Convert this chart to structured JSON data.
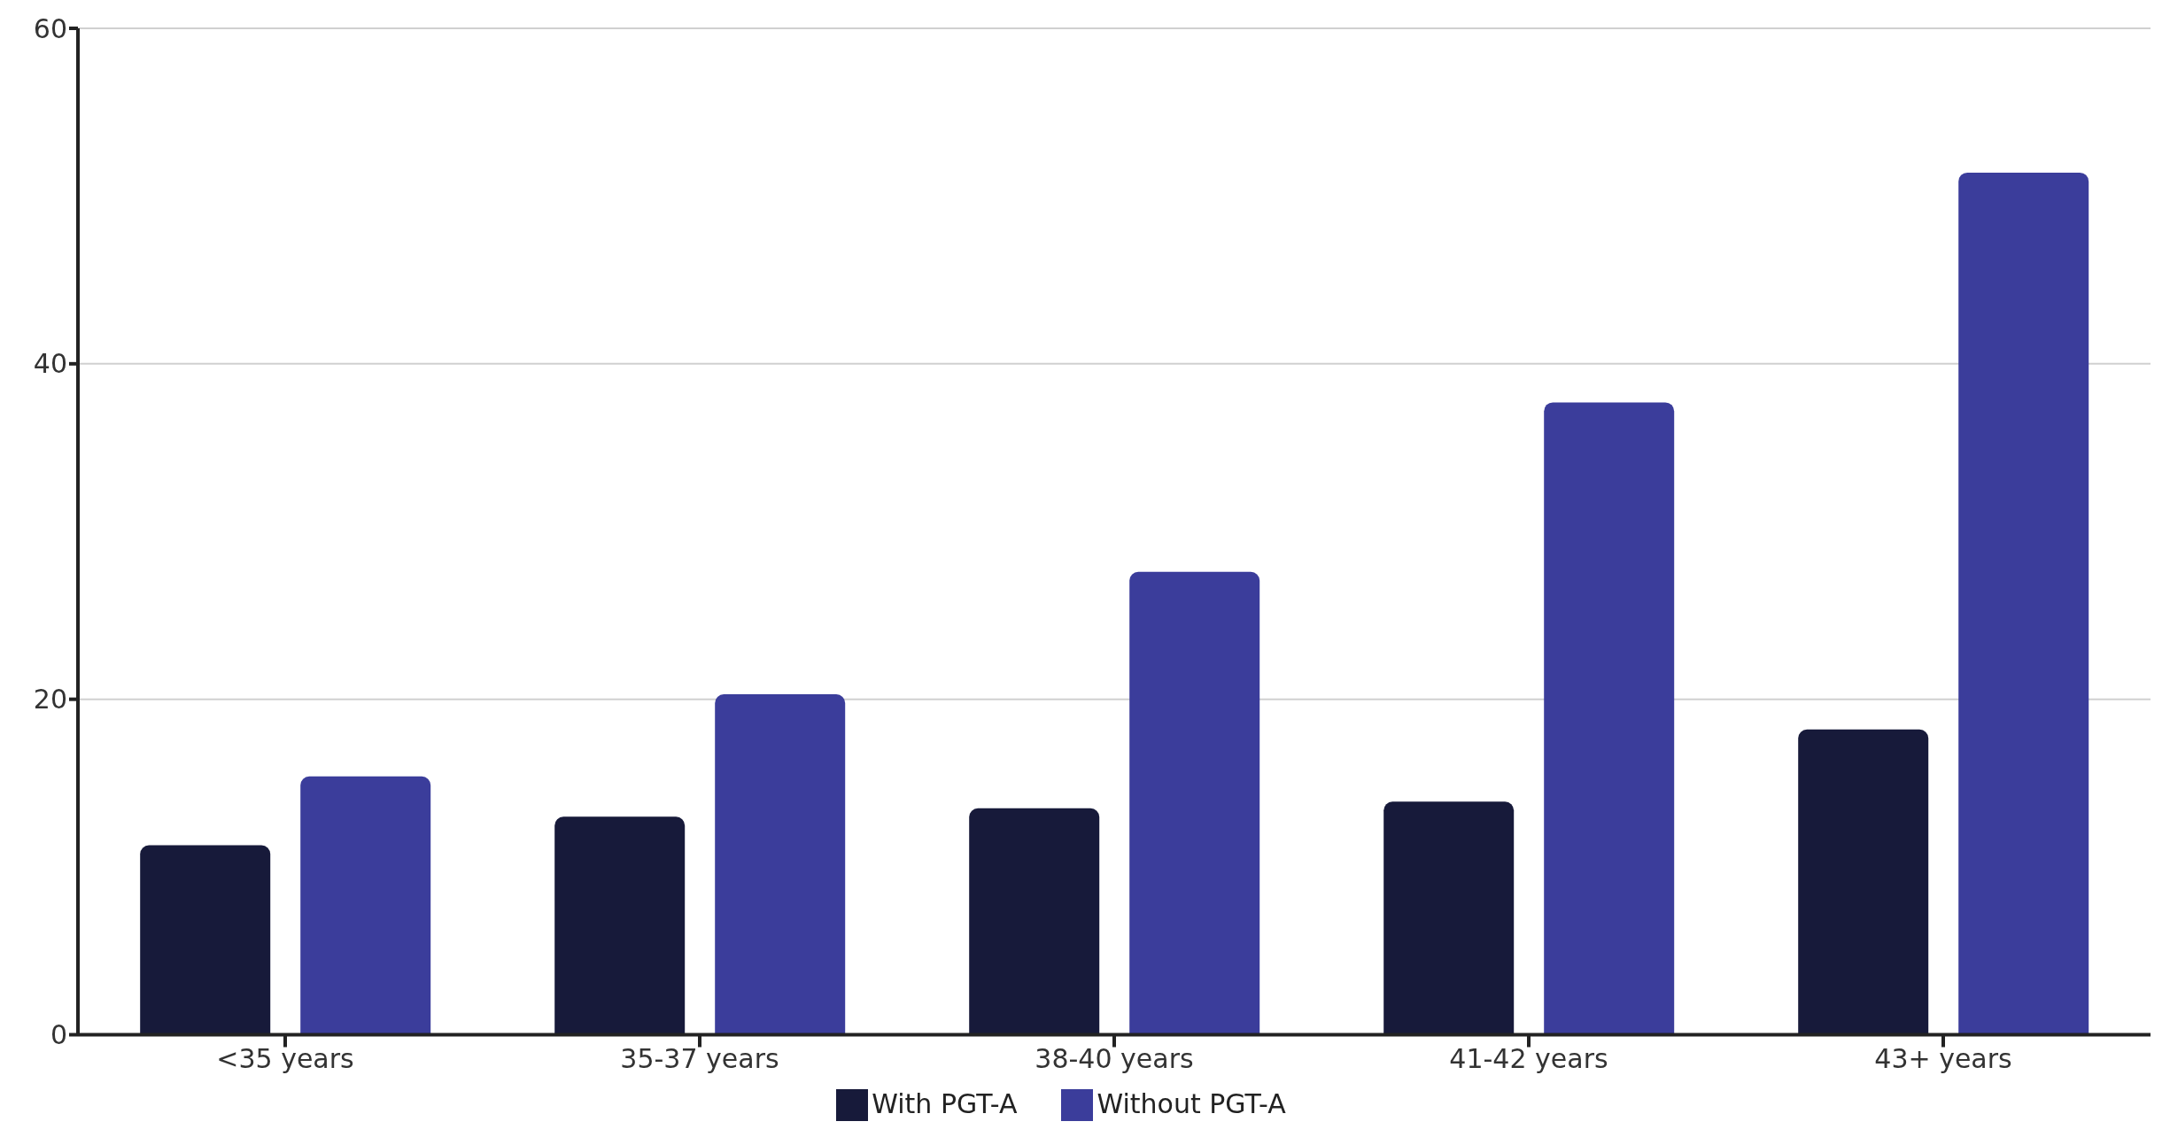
{
  "chart_data": {
    "type": "bar",
    "categories": [
      "<35 years",
      "35-37 years",
      "38-40 years",
      "41-42 years",
      "43+ years"
    ],
    "series": [
      {
        "name": "With PGT-A",
        "color": "#171a3a",
        "values": [
          11.3,
          13.0,
          13.5,
          13.9,
          18.2
        ]
      },
      {
        "name": "Without PGT-A",
        "color": "#3b3d9b",
        "values": [
          15.4,
          20.3,
          27.6,
          37.7,
          51.4
        ]
      }
    ],
    "ylim": [
      0,
      60
    ],
    "yticks": [
      0,
      20,
      40,
      60
    ],
    "grid": "y",
    "legend": "bottom"
  }
}
